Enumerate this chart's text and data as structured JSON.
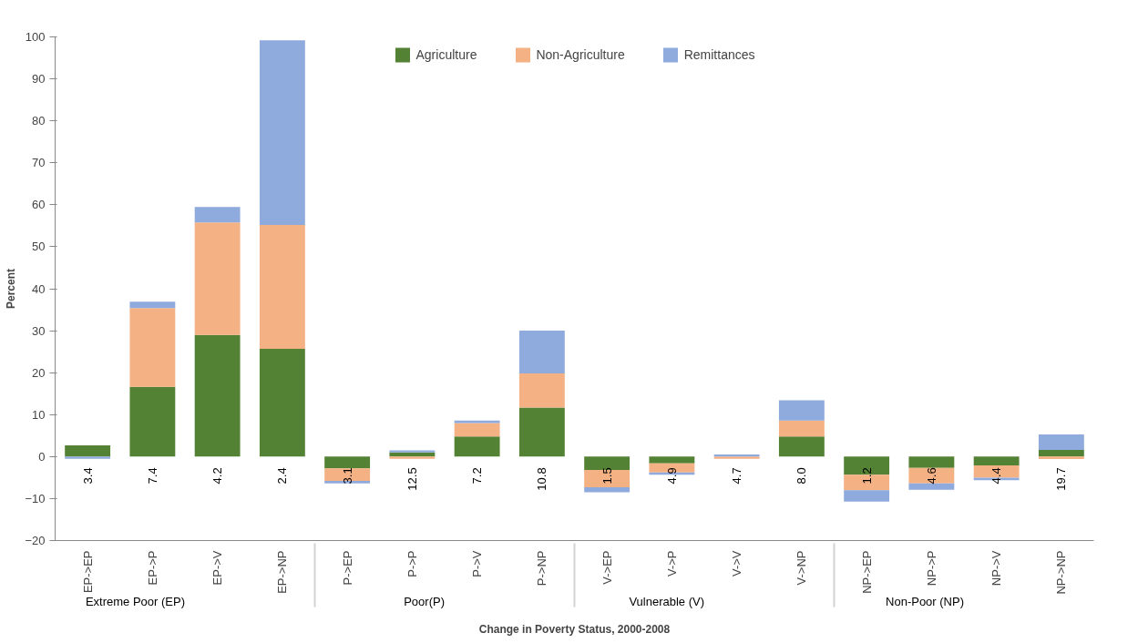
{
  "chart_data": {
    "type": "bar",
    "stacked": true,
    "xlabel": "Change in Poverty Status, 2000-2008",
    "ylabel": "Percent",
    "categories": [
      "EP->EP",
      "EP->P",
      "EP->V",
      "EP->NP",
      "P->EP",
      "P->P",
      "P->V",
      "P->NP",
      "V->EP",
      "V->P",
      "V->V",
      "V->NP",
      "NP->EP",
      "NP->P",
      "NP->V",
      "NP->NP"
    ],
    "series": [
      {
        "name": "Agriculture",
        "color": "#548235",
        "values": [
          2.7,
          16.6,
          29.0,
          25.7,
          -2.8,
          1.0,
          4.8,
          11.7,
          -3.2,
          -1.6,
          0,
          4.8,
          -4.3,
          -2.7,
          -2.1,
          1.6
        ]
      },
      {
        "name": "Non-Agriculture",
        "color": "#f4b183",
        "values": [
          0,
          18.8,
          26.8,
          29.5,
          -3.0,
          -0.5,
          3.2,
          8.1,
          -4.1,
          -2.2,
          -0.5,
          3.8,
          -3.7,
          -3.7,
          -2.9,
          -0.6
        ]
      },
      {
        "name": "Remittances",
        "color": "#8faadc",
        "values": [
          -0.5,
          1.5,
          3.7,
          44.0,
          -0.6,
          0.5,
          0.6,
          10.2,
          -1.2,
          -0.5,
          0.5,
          4.8,
          -2.7,
          -1.5,
          -0.6,
          3.7
        ]
      }
    ],
    "ylim": [
      -20,
      100
    ],
    "yticks": [
      -20,
      -10,
      0,
      10,
      20,
      30,
      40,
      50,
      60,
      70,
      80,
      90,
      100
    ],
    "grid": false,
    "legend": "top",
    "annotations": [
      "3.4",
      "7.4",
      "4.2",
      "2.4",
      "3.1",
      "12.5",
      "7.2",
      "10.8",
      "1.5",
      "4.9",
      "4.7",
      "8.0",
      "1.2",
      "4.6",
      "4.4",
      "19.7",
      "Extreme Poor (EP)",
      "Poor(P)",
      "Vulnerable (V)",
      "Non-Poor (NP)"
    ]
  }
}
